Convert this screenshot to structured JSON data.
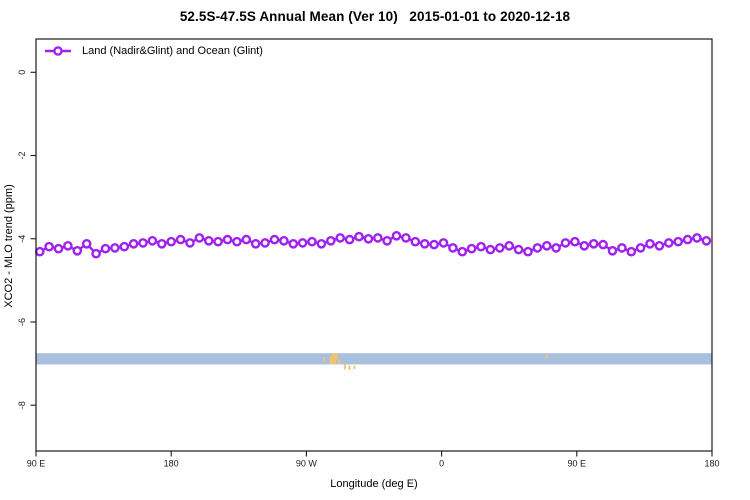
{
  "colors": {
    "series": "#A020F0",
    "ocean_strip": "#A9BFDE",
    "land_mark": "#F8C468",
    "axis": "#1a1a1a",
    "background": "#ffffff"
  },
  "chart_data": {
    "type": "line",
    "title": "52.5S-47.5S Annual Mean (Ver 10)   2015-01-01 to 2020-12-18",
    "xlabel": "Longitude (deg E)",
    "ylabel": "XCO2 - MLO trend (ppm)",
    "legend": {
      "label": "Land (Nadir&Glint) and Ocean (Glint)",
      "position": "top-left",
      "marker": "open-circle-on-line"
    },
    "xlim": [
      90,
      540
    ],
    "ylim": [
      -9.1,
      0.8
    ],
    "grid": false,
    "x_ticks": [
      {
        "lon": 90,
        "label": "90 E"
      },
      {
        "lon": 180,
        "label": "180"
      },
      {
        "lon": 270,
        "label": "90 W"
      },
      {
        "lon": 360,
        "label": "0"
      },
      {
        "lon": 450,
        "label": "90 E"
      },
      {
        "lon": 540,
        "label": "180"
      }
    ],
    "y_ticks": [
      {
        "value": 0,
        "label": "0"
      },
      {
        "value": -2,
        "label": "-2"
      },
      {
        "value": -4,
        "label": "-4"
      },
      {
        "value": -6,
        "label": "-6"
      },
      {
        "value": -8,
        "label": "-8"
      }
    ],
    "series": [
      {
        "name": "Land (Nadir&Glint) and Ocean (Glint)",
        "color": "#A020F0",
        "marker": "open-circle",
        "x": [
          92.5,
          98.75,
          105,
          111.25,
          117.5,
          123.75,
          130,
          136.25,
          142.5,
          148.75,
          155,
          161.25,
          167.5,
          173.75,
          180,
          186.25,
          192.5,
          198.75,
          205,
          211.25,
          217.5,
          223.75,
          230,
          236.25,
          242.5,
          248.75,
          255,
          261.25,
          267.5,
          273.75,
          280,
          286.25,
          292.5,
          298.75,
          305,
          311.25,
          317.5,
          323.75,
          330,
          336.25,
          342.5,
          348.75,
          355,
          361.25,
          367.5,
          373.75,
          380,
          386.25,
          392.5,
          398.75,
          405,
          411.25,
          417.5,
          423.75,
          430,
          436.25,
          442.5,
          448.75,
          455,
          461.25,
          467.5,
          473.75,
          480,
          486.25,
          492.5,
          498.75,
          505,
          511.25,
          517.5,
          523.75,
          530,
          536.25
        ],
        "values": [
          -4.31,
          -4.19,
          -4.24,
          -4.17,
          -4.29,
          -4.12,
          -4.36,
          -4.24,
          -4.22,
          -4.19,
          -4.12,
          -4.1,
          -4.05,
          -4.12,
          -4.07,
          -4.02,
          -4.1,
          -3.98,
          -4.05,
          -4.07,
          -4.02,
          -4.07,
          -4.02,
          -4.12,
          -4.1,
          -4.02,
          -4.05,
          -4.12,
          -4.1,
          -4.07,
          -4.12,
          -4.05,
          -3.98,
          -4.02,
          -3.95,
          -4.0,
          -3.98,
          -4.05,
          -3.93,
          -3.98,
          -4.07,
          -4.12,
          -4.14,
          -4.1,
          -4.22,
          -4.31,
          -4.24,
          -4.19,
          -4.26,
          -4.22,
          -4.17,
          -4.26,
          -4.31,
          -4.22,
          -4.17,
          -4.22,
          -4.1,
          -4.07,
          -4.17,
          -4.12,
          -4.14,
          -4.29,
          -4.22,
          -4.31,
          -4.22,
          -4.12,
          -4.17,
          -4.1,
          -4.07,
          -4.02,
          -3.98,
          -4.05
        ]
      }
    ],
    "surface_strip": {
      "description": "ocean/land indicator bar",
      "value_top": -6.75,
      "value_bottom": -7.02,
      "lon0": 90,
      "lon1": 540,
      "ocean_color": "#A9BFDE",
      "land_color": "#F8C468",
      "land_segments": [
        {
          "lon0": 281.0,
          "lon1": 282.3,
          "f0": 0.35,
          "f1": 0.75
        },
        {
          "lon0": 285.6,
          "lon1": 287.0,
          "f0": 0.25,
          "f1": 1.0
        },
        {
          "lon0": 287.3,
          "lon1": 289.5,
          "f0": 0.0,
          "f1": 1.0
        },
        {
          "lon0": 289.5,
          "lon1": 290.9,
          "f0": 0.0,
          "f1": 0.55
        },
        {
          "lon0": 291.3,
          "lon1": 292.7,
          "f0": 0.5,
          "f1": 1.0
        },
        {
          "lon0": 295.0,
          "lon1": 296.3,
          "f0": 1.0,
          "f1": 1.45
        },
        {
          "lon0": 298.0,
          "lon1": 299.3,
          "f0": 1.1,
          "f1": 1.5
        },
        {
          "lon0": 301.3,
          "lon1": 302.6,
          "f0": 1.1,
          "f1": 1.4
        },
        {
          "lon0": 429.2,
          "lon1": 430.6,
          "f0": 0.15,
          "f1": 0.45
        }
      ]
    }
  }
}
